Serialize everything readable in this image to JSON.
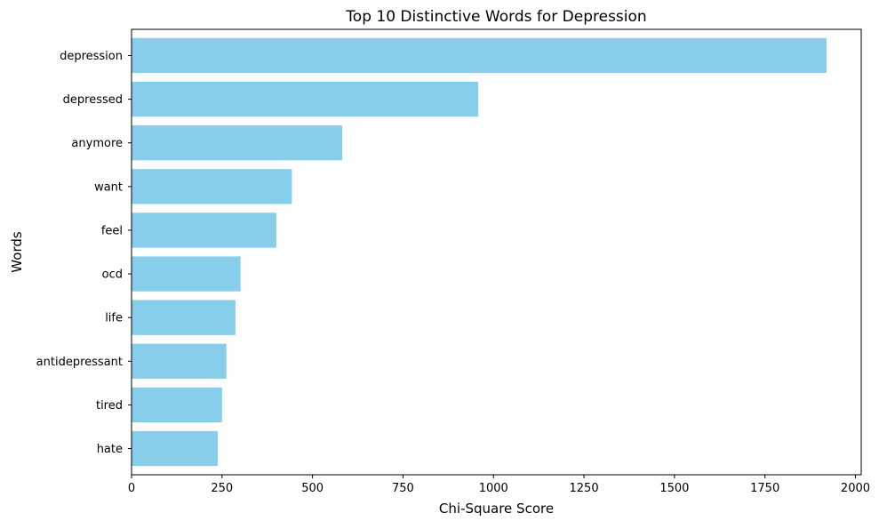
{
  "chart_data": {
    "type": "bar",
    "orientation": "horizontal",
    "title": "Top 10 Distinctive Words for Depression",
    "xlabel": "Chi-Square Score",
    "ylabel": "Words",
    "categories": [
      "depression",
      "depressed",
      "anymore",
      "want",
      "feel",
      "ocd",
      "life",
      "antidepressant",
      "tired",
      "hate"
    ],
    "values": [
      1920,
      958,
      582,
      443,
      400,
      301,
      287,
      262,
      250,
      238
    ],
    "xlim": [
      0,
      2016
    ],
    "xticks": [
      0,
      250,
      500,
      750,
      1000,
      1250,
      1500,
      1750,
      2000
    ],
    "bar_color": "#87ceeb",
    "grid": false,
    "legend": "none"
  }
}
